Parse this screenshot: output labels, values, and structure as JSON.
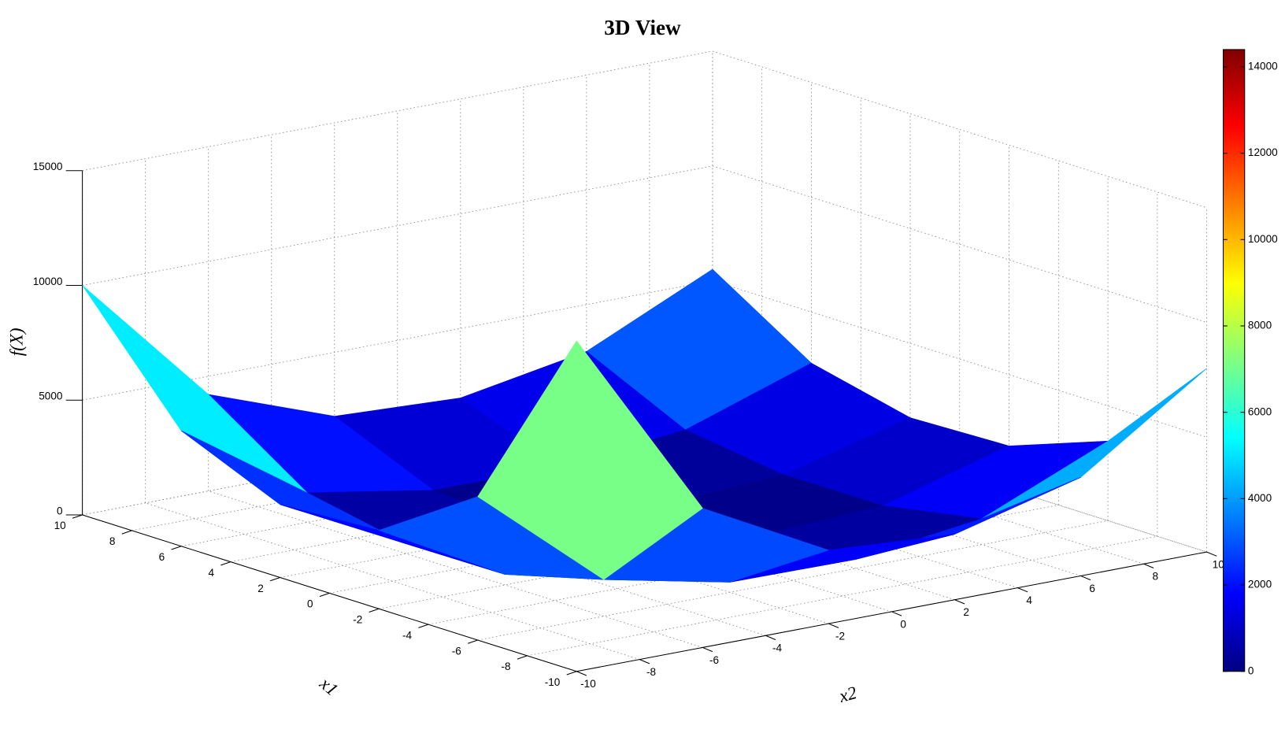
{
  "chart_data": {
    "type": "surface",
    "title": "3D View",
    "xlabel": "x1",
    "ylabel": "x2",
    "zlabel": "f(X)",
    "x1": [
      -10,
      -6,
      -2,
      2,
      6,
      10
    ],
    "x2": [
      -10,
      -6,
      -2,
      2,
      6,
      10
    ],
    "z": [
      [
        14400,
        6067,
        3202,
        2855,
        4291,
        8000
      ],
      [
        6252,
        1596,
        444,
        396,
        1128,
        3468
      ],
      [
        3418,
        460,
        17,
        15,
        325,
        1893
      ],
      [
        3180,
        428,
        15,
        14,
        302,
        1758
      ],
      [
        5031,
        1284,
        357,
        318,
        904,
        2774
      ],
      [
        10000,
        4208,
        2217,
        1974,
        2959,
        5500
      ]
    ],
    "xlim": [
      -10,
      10
    ],
    "xticks": [
      -10,
      -8,
      -6,
      -4,
      -2,
      0,
      2,
      4,
      6,
      8,
      10
    ],
    "ylim": [
      -10,
      10
    ],
    "yticks": [
      -10,
      -8,
      -6,
      -4,
      -2,
      0,
      2,
      4,
      6,
      8,
      10
    ],
    "zlim": [
      0,
      15000
    ],
    "zticks": [
      0,
      5000,
      10000,
      15000
    ],
    "colormap": "jet",
    "clim": [
      0,
      14400
    ],
    "cbticks": [
      0,
      2000,
      4000,
      6000,
      8000,
      10000,
      12000,
      14000
    ],
    "grid": true
  }
}
